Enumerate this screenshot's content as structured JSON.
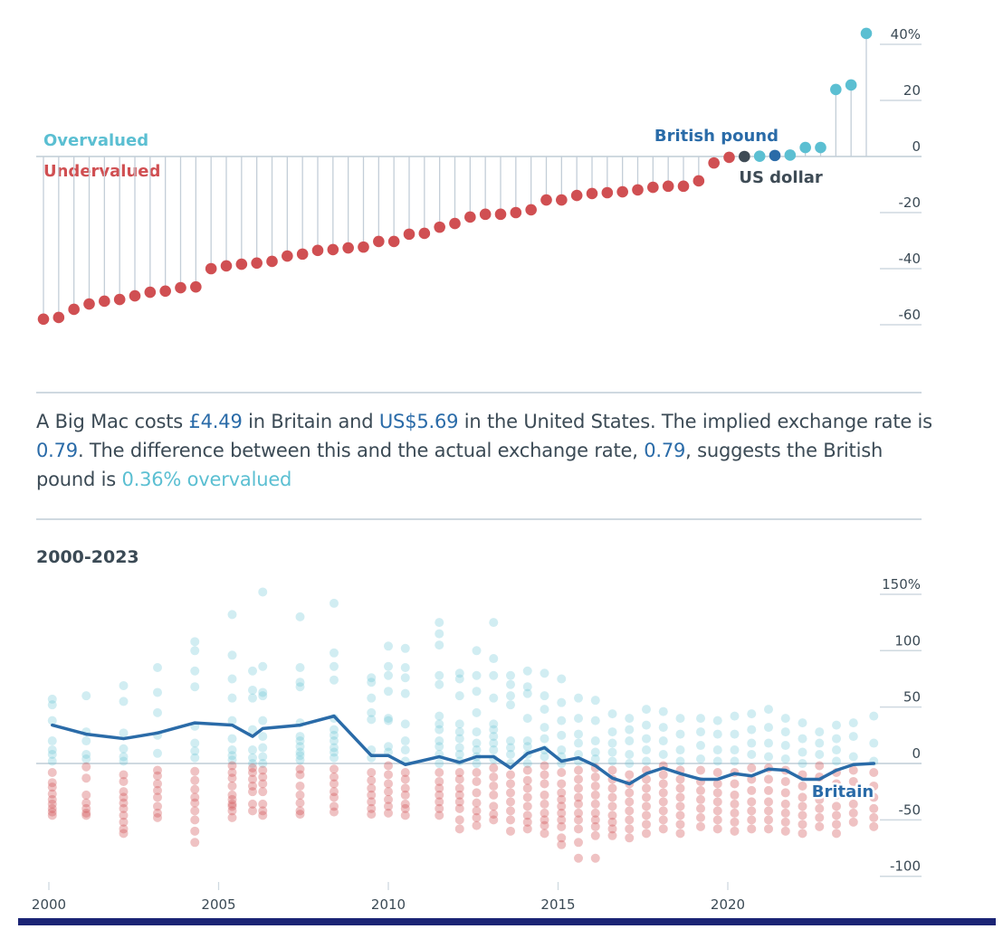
{
  "colors": {
    "overvalued": "#5bbfd2",
    "undervalued": "#d04f52",
    "highlight_pound": "#2a6ba8",
    "base_dollar": "#3e4b55",
    "axis_text": "#3b4a55",
    "gridline": "#cfd9e0",
    "stem": "#c3ced8",
    "line": "#2a6ba8",
    "footer_bar": "#1b2475"
  },
  "summary": {
    "parts": [
      {
        "text": "A Big Mac costs ",
        "style": "plain"
      },
      {
        "text": "£4.49",
        "style": "num"
      },
      {
        "text": " in Britain and ",
        "style": "plain"
      },
      {
        "text": "US$5.69",
        "style": "num"
      },
      {
        "text": " in the United States. The implied exchange rate is ",
        "style": "plain"
      },
      {
        "text": "0.79",
        "style": "num"
      },
      {
        "text": ". The difference between this and the actual exchange rate, ",
        "style": "plain"
      },
      {
        "text": "0.79",
        "style": "num"
      },
      {
        "text": ", suggests the British pound is ",
        "style": "plain"
      },
      {
        "text": "0.36% overvalued",
        "style": "over"
      }
    ]
  },
  "chart_data": [
    {
      "type": "scatter",
      "subtype": "lollipop",
      "title": "",
      "xlabel": "",
      "ylabel": "",
      "ylim": [
        -60,
        40
      ],
      "yticks": [
        40,
        20,
        0,
        -20,
        -40,
        -60
      ],
      "ytick_labels": [
        "40%",
        "20",
        "0",
        "-20",
        "-40",
        "-60"
      ],
      "grid": false,
      "labels": {
        "overvalued": "Overvalued",
        "undervalued": "Undervalued",
        "highlight": "British pound",
        "base": "US dollar"
      },
      "highlight_index": 48,
      "base_index": 46,
      "values": [
        -58,
        -57.4,
        -54.5,
        -52.6,
        -51.6,
        -51,
        -49.7,
        -48.4,
        -48,
        -46.8,
        -46.5,
        -40,
        -39,
        -38.4,
        -38,
        -37.4,
        -35.5,
        -34.8,
        -33.5,
        -33.2,
        -32.6,
        -32.3,
        -30.3,
        -30.3,
        -27.7,
        -27.4,
        -25.2,
        -23.9,
        -21.6,
        -20.6,
        -20.6,
        -20,
        -19,
        -15.5,
        -15.5,
        -13.9,
        -13.2,
        -12.9,
        -12.6,
        -11.9,
        -11,
        -10.6,
        -10.6,
        -8.7,
        -2.3,
        -0.3,
        0,
        0.1,
        0.36,
        0.5,
        3.2,
        3.2,
        23.9,
        25.5,
        43.9
      ]
    },
    {
      "type": "scatter",
      "title": "2000-2023",
      "xlabel": "",
      "ylabel": "",
      "xlim": [
        2000,
        2024.3
      ],
      "ylim": [
        -100,
        150
      ],
      "xticks": [
        2000,
        2005,
        2010,
        2015,
        2020
      ],
      "xtick_labels": [
        "2000",
        "2005",
        "2010",
        "2015",
        "2020"
      ],
      "yticks": [
        150,
        100,
        50,
        0,
        -50,
        -100
      ],
      "ytick_labels": [
        "150%",
        "100",
        "50",
        "0",
        "-50",
        "-100"
      ],
      "grid": false,
      "line_label": "Britain",
      "line": {
        "name": "Britain",
        "x": [
          2000.1,
          2001.1,
          2002.2,
          2003.2,
          2004.3,
          2005.4,
          2006.0,
          2006.3,
          2007.4,
          2008.4,
          2009.5,
          2010.0,
          2010.5,
          2011.5,
          2012.1,
          2012.6,
          2013.1,
          2013.6,
          2014.1,
          2014.6,
          2015.1,
          2015.6,
          2016.1,
          2016.6,
          2017.1,
          2017.6,
          2018.1,
          2018.6,
          2019.2,
          2019.7,
          2020.2,
          2020.7,
          2021.2,
          2021.7,
          2022.2,
          2022.7,
          2023.2,
          2023.7,
          2024.3
        ],
        "values": [
          34,
          26,
          22,
          27,
          36,
          34,
          24,
          31,
          34,
          42,
          7,
          7,
          -1,
          6,
          1,
          6,
          6,
          -4,
          9,
          14,
          2,
          5,
          -2,
          -13,
          -18,
          -9,
          -4,
          -9,
          -14,
          -14,
          -9,
          -11,
          -5,
          -6,
          -14,
          -14,
          -6,
          -1,
          0
        ]
      },
      "scatter_columns": [
        {
          "x": 2000.1,
          "values": [
            57,
            52,
            38,
            20,
            12,
            8,
            2,
            -8,
            -17,
            -21,
            -27,
            -32,
            -36,
            -40,
            -43,
            -46
          ]
        },
        {
          "x": 2001.1,
          "values": [
            60,
            28,
            20,
            8,
            4,
            -3,
            -13,
            -28,
            -35,
            -40,
            -44,
            -46
          ]
        },
        {
          "x": 2002.2,
          "values": [
            69,
            55,
            27,
            13,
            6,
            2,
            -10,
            -16,
            -25,
            -30,
            -35,
            -40,
            -46,
            -52,
            -58,
            -62
          ]
        },
        {
          "x": 2003.2,
          "values": [
            85,
            63,
            45,
            25,
            9,
            -6,
            -11,
            -18,
            -24,
            -30,
            -38,
            -44,
            -48
          ]
        },
        {
          "x": 2004.3,
          "values": [
            108,
            100,
            82,
            68,
            33,
            18,
            11,
            5,
            -7,
            -15,
            -23,
            -30,
            -35,
            -42,
            -50,
            -60,
            -70
          ]
        },
        {
          "x": 2005.4,
          "values": [
            132,
            96,
            75,
            58,
            38,
            22,
            12,
            7,
            3,
            -2,
            -8,
            -13,
            -20,
            -28,
            -32,
            -36,
            -38,
            -42,
            -48
          ]
        },
        {
          "x": 2006.0,
          "values": [
            82,
            65,
            58,
            30,
            12,
            5,
            0,
            -4,
            -8,
            -14,
            -20,
            -25,
            -36,
            -42
          ]
        },
        {
          "x": 2006.3,
          "values": [
            152,
            86,
            63,
            60,
            38,
            24,
            14,
            6,
            0,
            -6,
            -12,
            -18,
            -25,
            -36,
            -42,
            -46
          ]
        },
        {
          "x": 2007.4,
          "values": [
            130,
            85,
            72,
            68,
            36,
            24,
            20,
            15,
            10,
            7,
            3,
            -5,
            -10,
            -20,
            -28,
            -35,
            -42,
            -45
          ]
        },
        {
          "x": 2008.4,
          "values": [
            142,
            98,
            86,
            74,
            40,
            30,
            25,
            20,
            14,
            10,
            5,
            -5,
            -12,
            -18,
            -25,
            -30,
            -38,
            -43
          ]
        },
        {
          "x": 2009.5,
          "values": [
            76,
            72,
            58,
            45,
            39,
            12,
            5,
            -8,
            -15,
            -22,
            -28,
            -34,
            -40,
            -45
          ]
        },
        {
          "x": 2010.0,
          "values": [
            104,
            86,
            78,
            64,
            40,
            38,
            15,
            10,
            -2,
            -10,
            -18,
            -25,
            -32,
            -38,
            -44
          ]
        },
        {
          "x": 2010.5,
          "values": [
            102,
            85,
            76,
            62,
            35,
            20,
            12,
            2,
            -8,
            -14,
            -22,
            -28,
            -36,
            -40,
            -46
          ]
        },
        {
          "x": 2011.5,
          "values": [
            125,
            115,
            105,
            78,
            70,
            42,
            35,
            30,
            20,
            15,
            8,
            0,
            -8,
            -16,
            -22,
            -28,
            -34,
            -40,
            -46
          ]
        },
        {
          "x": 2012.1,
          "values": [
            80,
            75,
            60,
            35,
            28,
            22,
            14,
            8,
            2,
            -8,
            -14,
            -22,
            -28,
            -34,
            -40,
            -50,
            -58
          ]
        },
        {
          "x": 2012.6,
          "values": [
            100,
            78,
            64,
            45,
            28,
            18,
            12,
            6,
            0,
            -8,
            -16,
            -26,
            -35,
            -42,
            -48,
            -55
          ]
        },
        {
          "x": 2013.1,
          "values": [
            125,
            93,
            78,
            58,
            35,
            30,
            24,
            18,
            12,
            4,
            -4,
            -12,
            -20,
            -28,
            -38,
            -45,
            -50
          ]
        },
        {
          "x": 2013.6,
          "values": [
            78,
            70,
            60,
            52,
            20,
            14,
            8,
            0,
            -10,
            -18,
            -26,
            -34,
            -42,
            -50,
            -60
          ]
        },
        {
          "x": 2014.1,
          "values": [
            82,
            68,
            62,
            40,
            20,
            15,
            8,
            0,
            -6,
            -15,
            -22,
            -30,
            -38,
            -46,
            -52,
            -58
          ]
        },
        {
          "x": 2014.6,
          "values": [
            80,
            60,
            48,
            32,
            22,
            12,
            6,
            -2,
            -10,
            -18,
            -28,
            -36,
            -44,
            -50,
            -55,
            -62
          ]
        },
        {
          "x": 2015.1,
          "values": [
            75,
            54,
            38,
            25,
            12,
            6,
            0,
            -8,
            -18,
            -26,
            -32,
            -38,
            -44,
            -50,
            -56,
            -66,
            -72
          ]
        },
        {
          "x": 2015.6,
          "values": [
            58,
            40,
            26,
            18,
            8,
            2,
            -6,
            -14,
            -22,
            -30,
            -36,
            -44,
            -50,
            -58,
            -70,
            -84
          ]
        },
        {
          "x": 2016.1,
          "values": [
            56,
            38,
            20,
            10,
            4,
            -4,
            -12,
            -20,
            -28,
            -36,
            -44,
            -50,
            -56,
            -64,
            -84
          ]
        },
        {
          "x": 2016.6,
          "values": [
            44,
            28,
            18,
            10,
            2,
            -6,
            -14,
            -22,
            -30,
            -38,
            -46,
            -52,
            -58,
            -64
          ]
        },
        {
          "x": 2017.1,
          "values": [
            40,
            30,
            20,
            8,
            0,
            -10,
            -18,
            -26,
            -34,
            -42,
            -50,
            -58,
            -66
          ]
        },
        {
          "x": 2017.6,
          "values": [
            48,
            34,
            22,
            12,
            2,
            -6,
            -14,
            -22,
            -30,
            -38,
            -46,
            -54,
            -62
          ]
        },
        {
          "x": 2018.1,
          "values": [
            46,
            32,
            20,
            8,
            -2,
            -10,
            -18,
            -26,
            -34,
            -42,
            -50,
            -58
          ]
        },
        {
          "x": 2018.6,
          "values": [
            40,
            26,
            12,
            2,
            -6,
            -14,
            -22,
            -30,
            -38,
            -46,
            -54,
            -62
          ]
        },
        {
          "x": 2019.2,
          "values": [
            40,
            28,
            16,
            4,
            -6,
            -16,
            -24,
            -32,
            -40,
            -48,
            -56
          ]
        },
        {
          "x": 2019.7,
          "values": [
            38,
            26,
            12,
            2,
            -8,
            -18,
            -26,
            -34,
            -42,
            -50,
            -58
          ]
        },
        {
          "x": 2020.2,
          "values": [
            42,
            26,
            12,
            2,
            -8,
            -18,
            -28,
            -36,
            -44,
            -52,
            -60
          ]
        },
        {
          "x": 2020.7,
          "values": [
            44,
            30,
            18,
            8,
            -4,
            -14,
            -24,
            -34,
            -42,
            -50,
            -58
          ]
        },
        {
          "x": 2021.2,
          "values": [
            48,
            32,
            18,
            6,
            -4,
            -14,
            -24,
            -34,
            -42,
            -50,
            -58
          ]
        },
        {
          "x": 2021.7,
          "values": [
            40,
            28,
            16,
            4,
            -6,
            -16,
            -26,
            -36,
            -44,
            -52,
            -60
          ]
        },
        {
          "x": 2022.2,
          "values": [
            36,
            22,
            10,
            0,
            -10,
            -20,
            -30,
            -38,
            -46,
            -54,
            -62
          ]
        },
        {
          "x": 2022.7,
          "values": [
            28,
            18,
            8,
            -2,
            -12,
            -22,
            -32,
            -40,
            -48,
            -56
          ]
        },
        {
          "x": 2023.2,
          "values": [
            34,
            22,
            12,
            2,
            -8,
            -18,
            -28,
            -38,
            -46,
            -54,
            -62
          ]
        },
        {
          "x": 2023.7,
          "values": [
            36,
            24,
            6,
            -6,
            -16,
            -26,
            -36,
            -44,
            -52
          ]
        },
        {
          "x": 2024.3,
          "values": [
            42,
            18,
            2,
            -8,
            -20,
            -30,
            -40,
            -48,
            -56
          ]
        }
      ]
    }
  ]
}
